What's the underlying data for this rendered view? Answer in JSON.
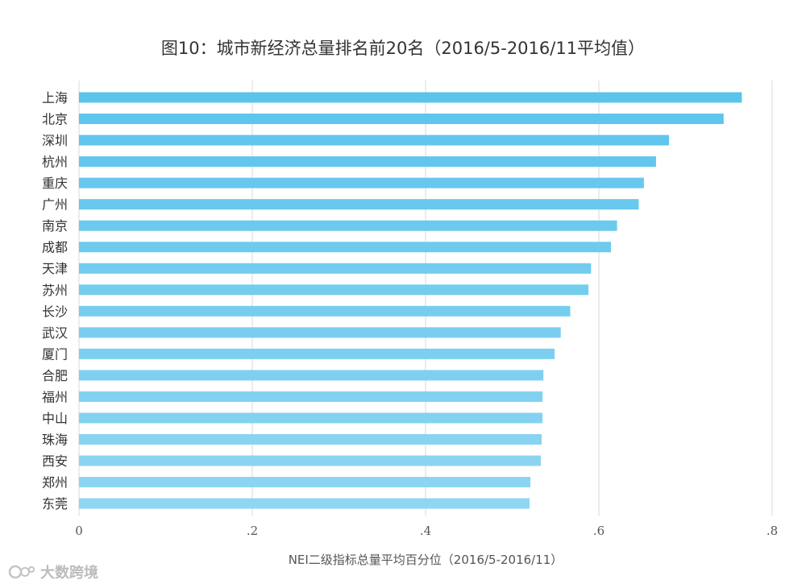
{
  "chart_data": {
    "type": "bar",
    "orientation": "horizontal",
    "title": "图10：城市新经济总量排名前20名（2016/5-2016/11平均值）",
    "xlabel": "NEI二级指标总量平均百分位（2016/5-2016/11）",
    "ylabel": "",
    "xlim": [
      0,
      0.8
    ],
    "xticks": [
      0,
      0.2,
      0.4,
      0.6,
      0.8
    ],
    "xtick_labels": [
      "0",
      ".2",
      ".4",
      ".6",
      ".8"
    ],
    "grid": true,
    "categories": [
      "上海",
      "北京",
      "深圳",
      "杭州",
      "重庆",
      "广州",
      "南京",
      "成都",
      "天津",
      "苏州",
      "长沙",
      "武汉",
      "厦门",
      "合肥",
      "福州",
      "中山",
      "珠海",
      "西安",
      "郑州",
      "东莞"
    ],
    "values": [
      0.765,
      0.744,
      0.681,
      0.666,
      0.652,
      0.646,
      0.621,
      0.614,
      0.591,
      0.588,
      0.567,
      0.556,
      0.549,
      0.536,
      0.535,
      0.535,
      0.534,
      0.533,
      0.521,
      0.52
    ],
    "bar_color_start": "#5bc4ec",
    "bar_color_end": "#8fd6f2",
    "grid_color": "#d9d9d9"
  },
  "watermark": {
    "text": "大数跨境"
  }
}
